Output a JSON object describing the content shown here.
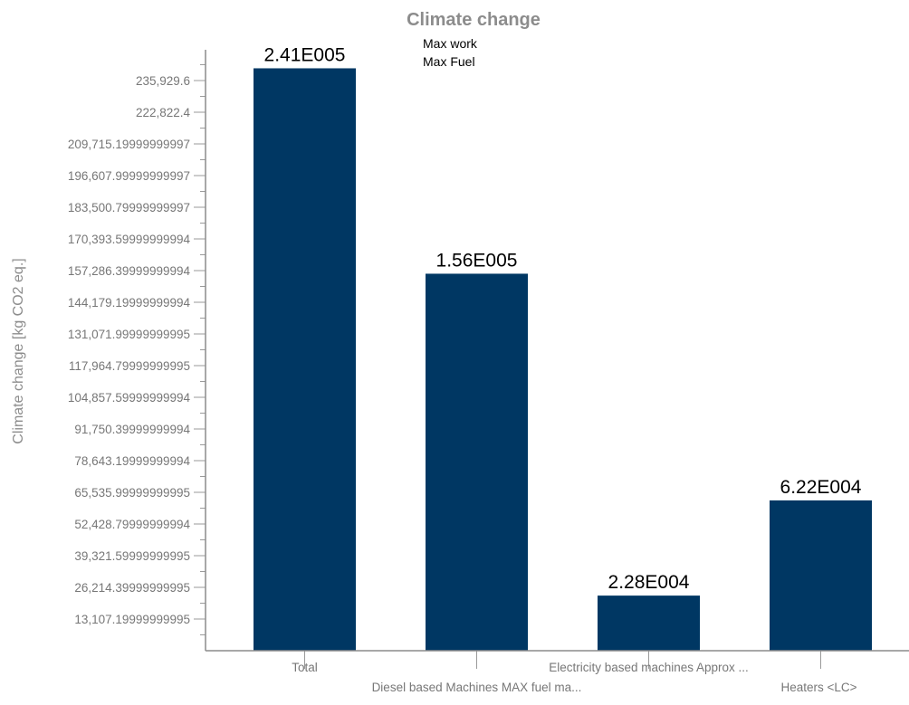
{
  "chart_data": {
    "type": "bar",
    "title": "Climate change",
    "xlabel": "",
    "ylabel": "Climate change [kg CO2 eq.]",
    "categories": [
      "Total",
      "Diesel based Machines MAX fuel ma...",
      "Electricity based machines Approx ...",
      "Heaters <LC>"
    ],
    "values": [
      241000,
      156000,
      22800,
      62200
    ],
    "value_labels": [
      "2.41E005",
      "1.56E005",
      "2.28E004",
      "6.22E004"
    ],
    "legend": [
      "Max work",
      "Max Fuel"
    ],
    "legend_position": "top",
    "ylim": [
      0,
      241000
    ],
    "yticks": [
      13107.2,
      26214.4,
      39321.6,
      52428.8,
      65536,
      78643.2,
      91750.4,
      104857.6,
      117964.8,
      131072,
      144179.2,
      157286.4,
      170393.6,
      183500.8,
      196608,
      209715.2,
      222822.4,
      235929.6
    ],
    "ytick_labels": [
      "13,107.19999999995",
      "26,214.39999999995",
      "39,321.59999999995",
      "52,428.79999999994",
      "65,535.99999999995",
      "78,643.19999999994",
      "91,750.39999999994",
      "104,857.59999999994",
      "117,964.79999999995",
      "131,071.99999999995",
      "144,179.19999999994",
      "157,286.39999999994",
      "170,393.59999999994",
      "183,500.79999999997",
      "196,607.99999999997",
      "209,715.19999999997",
      "222,822.4",
      "235,929.6"
    ],
    "grid": false,
    "colors": {
      "bar": "#003763",
      "axis": "#8c8c8c",
      "text_muted": "#777777",
      "title": "#8c8c8c"
    }
  }
}
